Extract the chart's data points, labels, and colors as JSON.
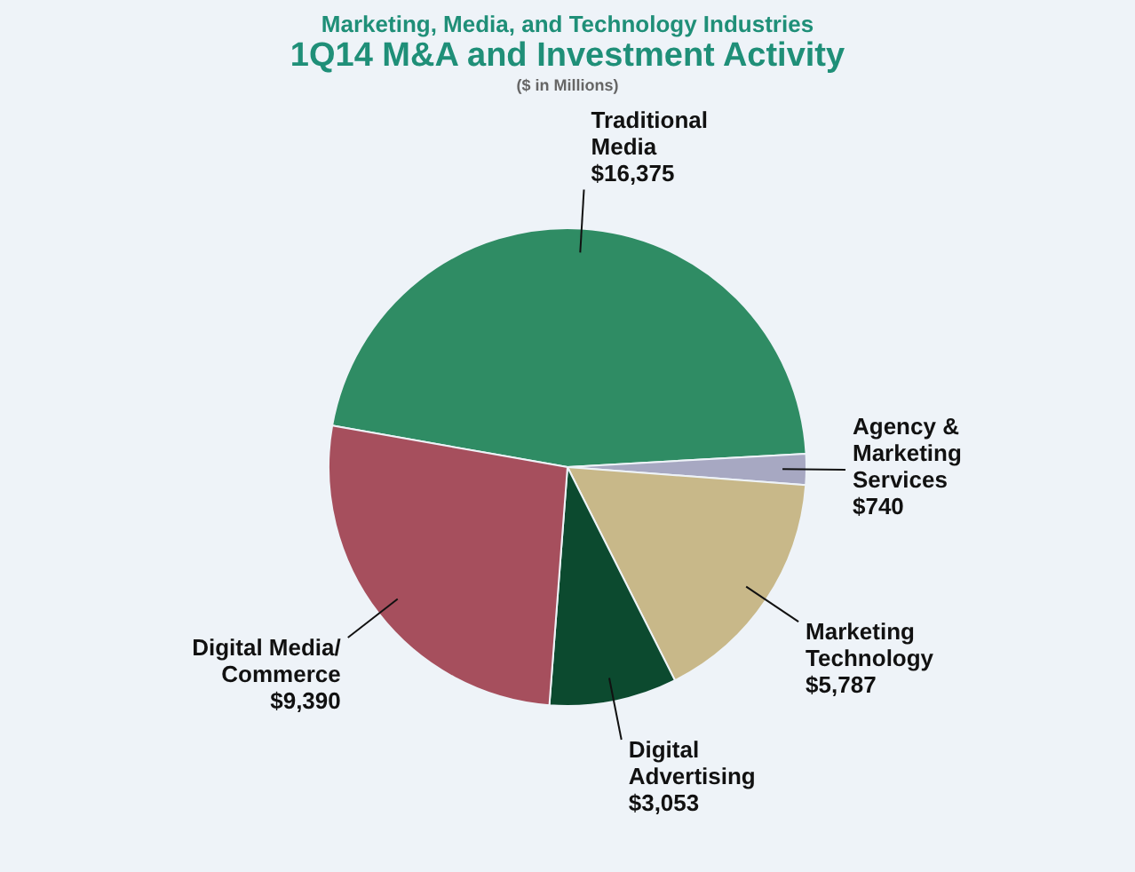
{
  "chart_data": {
    "type": "pie",
    "subtitle": "Marketing, Media, and Technology Industries",
    "title": "1Q14 M&A and Investment Activity",
    "annotations": [
      "($ in Millions)"
    ],
    "categories": [
      "Traditional Media",
      "Agency & Marketing Services",
      "Marketing Technology",
      "Digital Advertising",
      "Digital Media/ Commerce"
    ],
    "values": [
      16375,
      740,
      5787,
      3053,
      9390
    ],
    "value_labels": [
      "$16,375",
      "$740",
      "$5,787",
      "$3,053",
      "$9,390"
    ],
    "colors": [
      "#2f8c64",
      "#a7a8c2",
      "#c8b889",
      "#0c4a2f",
      "#a64f5d"
    ],
    "legend": false
  }
}
